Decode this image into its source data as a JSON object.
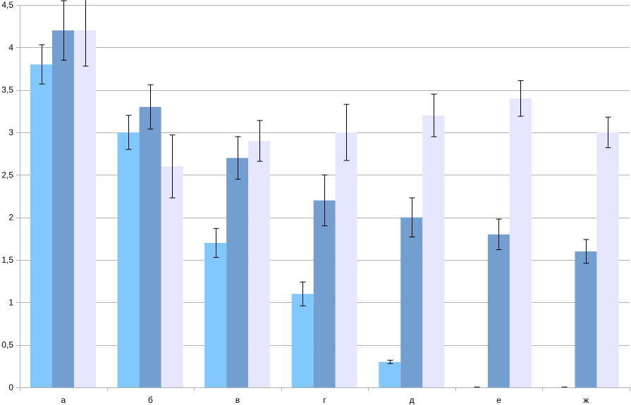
{
  "chart_data": {
    "type": "bar",
    "title": "",
    "xlabel": "",
    "ylabel": "",
    "ylim": [
      0,
      4.5
    ],
    "y_ticks": [
      "0",
      "0,5",
      "1",
      "1,5",
      "2",
      "2,5",
      "3",
      "3,5",
      "4",
      "4,5"
    ],
    "y_tick_values": [
      0,
      0.5,
      1,
      1.5,
      2,
      2.5,
      3,
      3.5,
      4,
      4.5
    ],
    "grid": true,
    "legend": "none",
    "categories": [
      "а",
      "б",
      "в",
      "г",
      "д",
      "е",
      "ж"
    ],
    "series": [
      {
        "color": "#80c8ff",
        "values": [
          3.8,
          3.0,
          1.7,
          1.1,
          0.3,
          0,
          0
        ],
        "errors": [
          0.23,
          0.2,
          0.17,
          0.14,
          0.02,
          0,
          0
        ]
      },
      {
        "color": "#729fcf",
        "values": [
          4.2,
          3.3,
          2.7,
          2.2,
          2.0,
          1.8,
          1.6
        ],
        "errors": [
          0.35,
          0.26,
          0.25,
          0.3,
          0.23,
          0.18,
          0.14
        ]
      },
      {
        "color": "#e6e6ff",
        "values": [
          4.2,
          2.6,
          2.9,
          3.0,
          3.2,
          3.4,
          3.0
        ],
        "errors": [
          0.42,
          0.37,
          0.24,
          0.33,
          0.25,
          0.21,
          0.18
        ]
      }
    ]
  }
}
